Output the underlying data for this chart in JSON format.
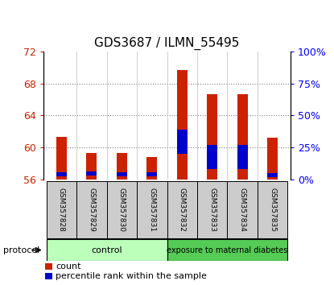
{
  "title": "GDS3687 / ILMN_55495",
  "samples": [
    "GSM357828",
    "GSM357829",
    "GSM357830",
    "GSM357831",
    "GSM357832",
    "GSM357833",
    "GSM357834",
    "GSM357835"
  ],
  "count_values": [
    61.3,
    59.3,
    59.3,
    58.85,
    69.7,
    66.6,
    66.6,
    61.2
  ],
  "percentile_values": [
    0.5,
    0.5,
    0.5,
    0.5,
    3.0,
    3.0,
    3.0,
    0.5
  ],
  "percentile_positions": [
    56.4,
    56.5,
    56.4,
    56.4,
    59.2,
    57.3,
    57.3,
    56.3
  ],
  "ymin": 56,
  "ymax": 72,
  "yticks": [
    56,
    60,
    64,
    68,
    72
  ],
  "y2ticks_labels": [
    "0%",
    "25%",
    "50%",
    "75%",
    "100%"
  ],
  "bar_width": 0.35,
  "red_color": "#cc2200",
  "blue_color": "#0000cc",
  "label_box_color": "#cccccc",
  "control_color": "#bbffbb",
  "diabetes_color": "#55cc55",
  "control_label": "control",
  "diabetes_label": "exposure to maternal diabetes",
  "protocol_label": "protocol",
  "legend_count": "count",
  "legend_percentile": "percentile rank within the sample",
  "title_fontsize": 11,
  "tick_fontsize": 9,
  "label_fontsize": 6.5
}
